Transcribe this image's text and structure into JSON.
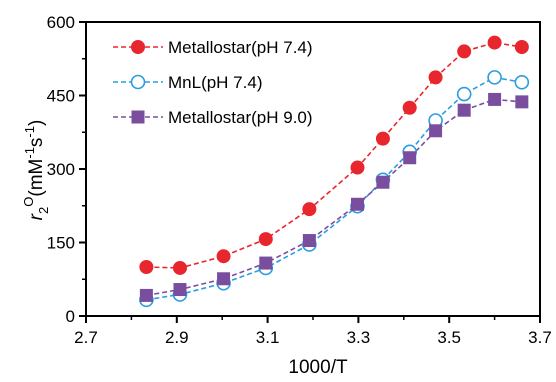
{
  "chart_data": {
    "type": "line",
    "title": "",
    "xlabel": "1000/T",
    "ylabel": {
      "italic": "r",
      "sub": "2",
      "sup": "O",
      "unit_open": "(mM",
      "unit_sup1": "-1",
      "unit_mid": "s",
      "unit_sup2": "-1",
      "unit_close": ")"
    },
    "xlim": [
      2.7,
      3.7
    ],
    "ylim": [
      0,
      600
    ],
    "x_ticks": [
      2.7,
      2.9,
      3.1,
      3.3,
      3.5,
      3.7
    ],
    "x_tick_labels": [
      "2.7",
      "2.9",
      "3.1",
      "3.3",
      "3.5",
      "3.7"
    ],
    "y_ticks": [
      0,
      150,
      300,
      450,
      600
    ],
    "y_tick_labels": [
      "0",
      "150",
      "300",
      "450",
      "600"
    ],
    "grid": false,
    "legend_position": "top-left",
    "x": [
      2.833,
      2.907,
      3.003,
      3.096,
      3.192,
      3.298,
      3.354,
      3.413,
      3.47,
      3.533,
      3.6,
      3.66
    ],
    "series": [
      {
        "name": "Metallostar(pH 7.4)",
        "color": "#e8262d",
        "marker": "circle-filled",
        "values": [
          100,
          98,
          122,
          157,
          218,
          303,
          362,
          425,
          487,
          540,
          558,
          549
        ]
      },
      {
        "name": "MnL(pH 7.4)",
        "color": "#2a9de0",
        "marker": "circle-open",
        "values": [
          33,
          44,
          67,
          98,
          146,
          224,
          278,
          335,
          399,
          453,
          487,
          477
        ]
      },
      {
        "name": "Metallostar(pH 9.0)",
        "color": "#7a4e9e",
        "marker": "square-filled",
        "values": [
          42,
          54,
          76,
          108,
          154,
          228,
          273,
          323,
          378,
          420,
          442,
          437
        ]
      }
    ]
  }
}
